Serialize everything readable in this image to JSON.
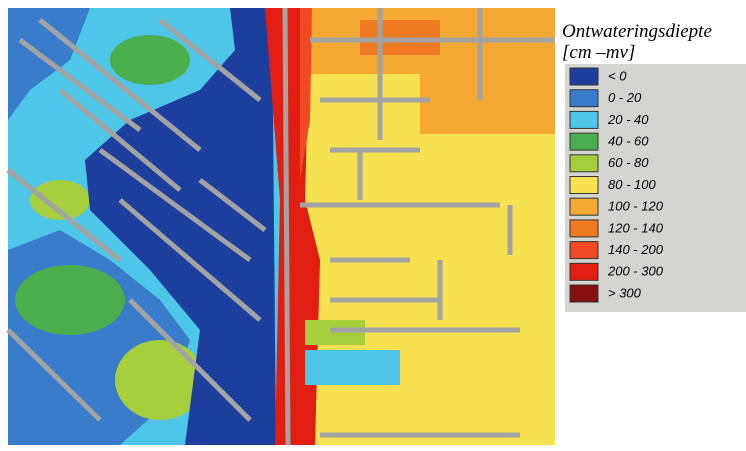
{
  "legend": {
    "title": "Ontwateringsdiepte",
    "unit": "[cm –mv]",
    "items": [
      {
        "label": "< 0",
        "color": "#1c3f9e"
      },
      {
        "label": "0 - 20",
        "color": "#3a7ccc"
      },
      {
        "label": "20 - 40",
        "color": "#4ec6e8"
      },
      {
        "label": "40 - 60",
        "color": "#4aae4c"
      },
      {
        "label": "60 - 80",
        "color": "#a6cf3e"
      },
      {
        "label": "80 - 100",
        "color": "#f6e150"
      },
      {
        "label": "100 - 120",
        "color": "#f5a832"
      },
      {
        "label": "120 - 140",
        "color": "#f07a22"
      },
      {
        "label": "140 - 200",
        "color": "#ef4a22"
      },
      {
        "label": "200 - 300",
        "color": "#e21e12"
      },
      {
        "label": "> 300",
        "color": "#861010"
      }
    ]
  }
}
